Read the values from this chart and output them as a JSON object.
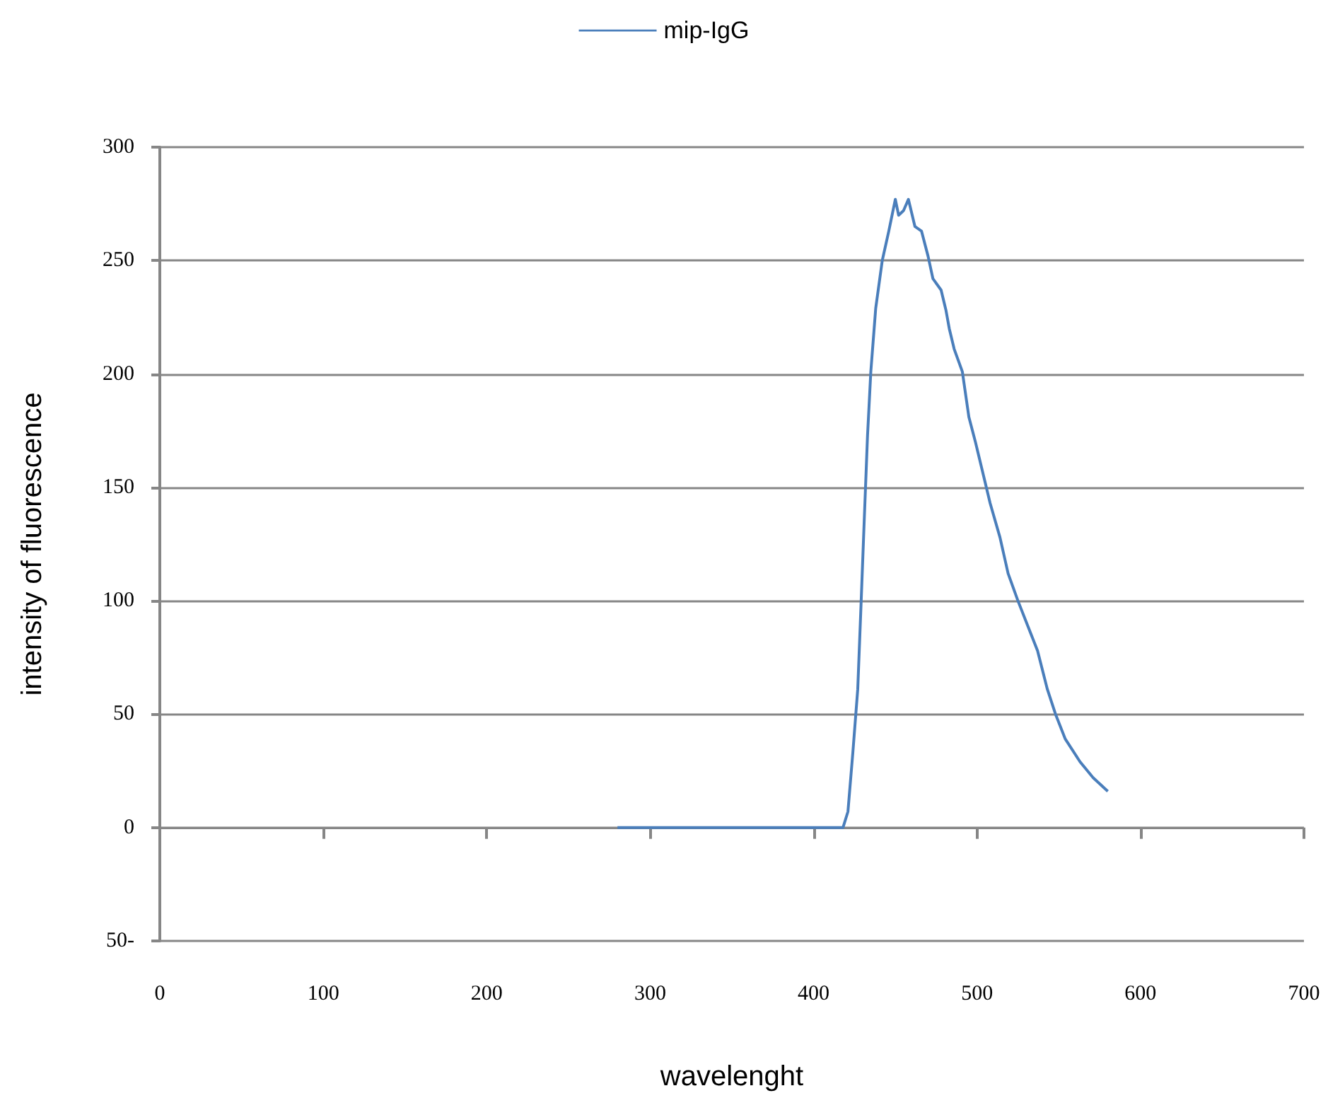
{
  "chart_data": {
    "type": "line",
    "xlabel": "wavelenght",
    "ylabel": "intensity of fluorescence",
    "xlim": [
      0,
      700
    ],
    "xticks": [
      0,
      100,
      200,
      300,
      400,
      500,
      600,
      700
    ],
    "ylim": [
      -50,
      300
    ],
    "yticks": [
      {
        "value": -50,
        "label": "50-"
      },
      0,
      50,
      100,
      150,
      200,
      250,
      300
    ],
    "grid": "y",
    "legend": "top",
    "marker": "none",
    "series": [
      {
        "name": "mip-IgG",
        "color": "#4a7ebb",
        "x": [
          280,
          320,
          360,
          400,
          418,
          421,
          424,
          427,
          429,
          431,
          433,
          435,
          438,
          442,
          446,
          450,
          452,
          455,
          458,
          462,
          466,
          470,
          473,
          478,
          481,
          483,
          486,
          491,
          495,
          499,
          504,
          508,
          514,
          519,
          525,
          531,
          537,
          543,
          548,
          554,
          563,
          571,
          580
        ],
        "values": [
          0,
          0,
          0,
          0,
          0,
          7,
          33,
          61,
          98,
          136,
          173,
          201,
          229,
          250,
          263,
          277,
          270,
          272,
          277,
          265,
          263,
          252,
          242,
          237,
          228,
          220,
          211,
          201,
          181,
          170,
          155,
          143,
          128,
          112,
          100,
          89,
          78,
          61,
          50,
          39,
          29,
          22,
          16
        ]
      }
    ]
  }
}
